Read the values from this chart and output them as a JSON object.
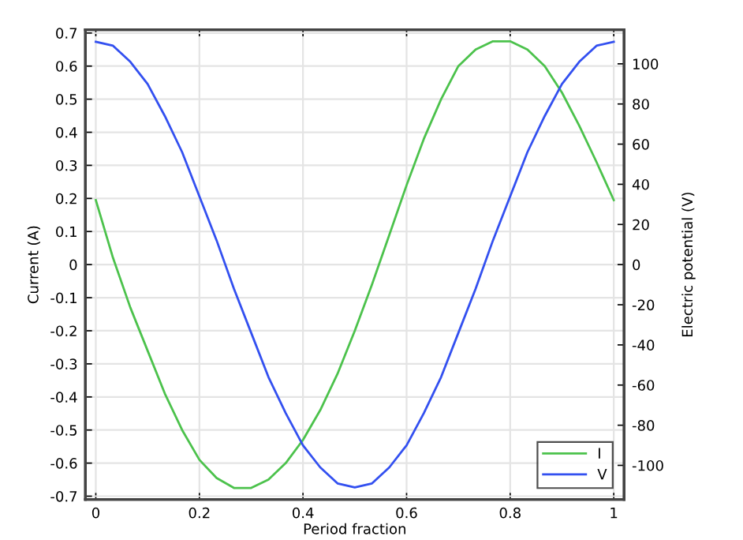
{
  "chart_data": {
    "type": "line",
    "xlabel": "Period fraction",
    "ylabel": "Current (A)",
    "y2label": "Electric potential (V)",
    "x": [
      0,
      0.0333,
      0.0667,
      0.1,
      0.1333,
      0.1667,
      0.2,
      0.2333,
      0.2667,
      0.3,
      0.3333,
      0.3667,
      0.4,
      0.4333,
      0.4667,
      0.5,
      0.5333,
      0.5667,
      0.6,
      0.6333,
      0.6667,
      0.7,
      0.7333,
      0.7667,
      0.8,
      0.8333,
      0.8667,
      0.9,
      0.9333,
      0.9667,
      1
    ],
    "series": [
      {
        "name": "I",
        "color": "#4cc24c",
        "values": [
          0.195,
          0.02,
          -0.13,
          -0.26,
          -0.39,
          -0.5,
          -0.59,
          -0.645,
          -0.675,
          -0.675,
          -0.65,
          -0.6,
          -0.53,
          -0.44,
          -0.33,
          -0.2,
          -0.06,
          0.09,
          0.24,
          0.38,
          0.5,
          0.6,
          0.65,
          0.675,
          0.675,
          0.65,
          0.6,
          0.52,
          0.42,
          0.31,
          0.195
        ]
      },
      {
        "name": "V",
        "color": "#3350f0",
        "axis": "y2",
        "values": [
          111,
          109,
          101,
          90,
          74,
          56,
          34,
          12,
          -12,
          -34,
          -56,
          -74,
          -90,
          -101,
          -109,
          -111,
          -109,
          -101,
          -90,
          -74,
          -56,
          -34,
          -12,
          12,
          34,
          56,
          74,
          90,
          101,
          109,
          111
        ]
      }
    ],
    "xlim": [
      -0.02,
      1.02
    ],
    "xticks": [
      0,
      0.2,
      0.4,
      0.6,
      0.8,
      1
    ],
    "ylim": [
      -0.71,
      0.71
    ],
    "yticks": [
      -0.7,
      -0.6,
      -0.5,
      -0.4,
      -0.3,
      -0.2,
      -0.1,
      0,
      0.1,
      0.2,
      0.3,
      0.4,
      0.5,
      0.6,
      0.7
    ],
    "y2lim": [
      -117,
      117
    ],
    "y2ticks": [
      -100,
      -80,
      -60,
      -40,
      -20,
      0,
      20,
      40,
      60,
      80,
      100
    ],
    "grid": true,
    "legend": "lower right",
    "marker": "none",
    "line_style": "solid"
  }
}
